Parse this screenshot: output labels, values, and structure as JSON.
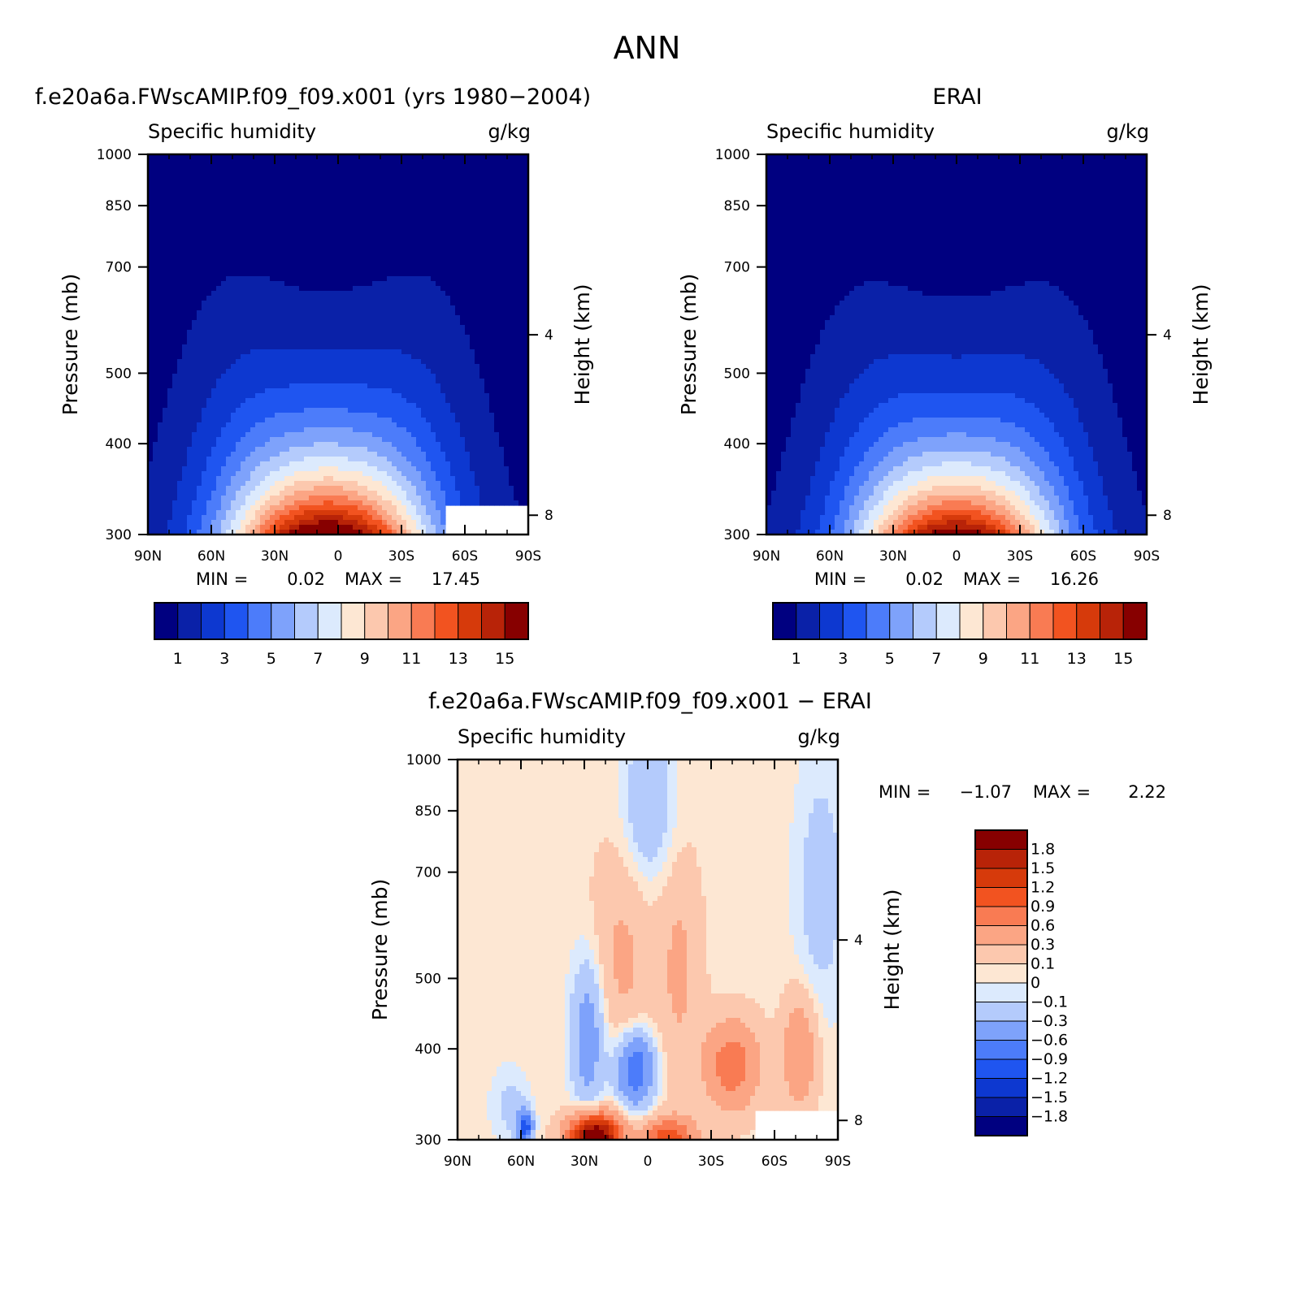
{
  "title": "ANN",
  "colors": {
    "model_obs_scale": [
      "#000080",
      "#0a21a8",
      "#0d38d0",
      "#1f55f0",
      "#4c7cfa",
      "#7ea2fb",
      "#b4cbfc",
      "#dceafd",
      "#fde7d3",
      "#fcc8ae",
      "#fba584",
      "#f97b53",
      "#f25320",
      "#d63a0b",
      "#b82308",
      "#870000"
    ],
    "diff_scale": [
      "#000080",
      "#0a21a8",
      "#0d38d0",
      "#1f55f0",
      "#4c7cfa",
      "#7ea2fb",
      "#b4cbfc",
      "#dceafd",
      "#fde7d3",
      "#fcc8ae",
      "#fba584",
      "#f97b53",
      "#f25320",
      "#d63a0b",
      "#b82308",
      "#870000"
    ]
  },
  "chart_data": [
    {
      "type": "heatmap",
      "title": "f.e20a6a.FWscAMIP.f09_f09.x001 (yrs 1980−2004)",
      "left_caption": "Specific humidity",
      "right_caption": "g/kg",
      "xlabel": "",
      "ylabel": "Pressure (mb)",
      "y2label": "Height (km)",
      "xticks": [
        "90N",
        "60N",
        "30N",
        "0",
        "30S",
        "60S",
        "90S"
      ],
      "yticks": [
        "300",
        "400",
        "500",
        "700",
        "850",
        "1000"
      ],
      "y2ticks": [
        "8",
        "4"
      ],
      "ylim": [
        1000,
        300
      ],
      "y_scale": "log",
      "min_label": "MIN =",
      "min_value": "0.02",
      "max_label": "MAX =",
      "max_value": "17.45",
      "colorbar_labels": [
        "1",
        "3",
        "5",
        "7",
        "9",
        "11",
        "13",
        "15"
      ],
      "field": {
        "kind": "humidity",
        "peak": 17.45,
        "center_lat": 5,
        "missing_from_lat": -50,
        "missing_below_p": 910
      }
    },
    {
      "type": "heatmap",
      "title": "ERAI",
      "left_caption": "Specific humidity",
      "right_caption": "g/kg",
      "xlabel": "",
      "ylabel": "Pressure (mb)",
      "y2label": "Height (km)",
      "xticks": [
        "90N",
        "60N",
        "30N",
        "0",
        "30S",
        "60S",
        "90S"
      ],
      "yticks": [
        "300",
        "400",
        "500",
        "700",
        "850",
        "1000"
      ],
      "y2ticks": [
        "8",
        "4"
      ],
      "ylim": [
        1000,
        300
      ],
      "y_scale": "log",
      "min_label": "MIN =",
      "min_value": "0.02",
      "max_label": "MAX =",
      "max_value": "16.26",
      "colorbar_labels": [
        "1",
        "3",
        "5",
        "7",
        "9",
        "11",
        "13",
        "15"
      ],
      "field": {
        "kind": "humidity",
        "peak": 16.26,
        "center_lat": 0
      }
    },
    {
      "type": "heatmap",
      "title": "f.e20a6a.FWscAMIP.f09_f09.x001 − ERAI",
      "left_caption": "Specific humidity",
      "right_caption": "g/kg",
      "xlabel": "",
      "ylabel": "Pressure (mb)",
      "y2label": "Height (km)",
      "xticks": [
        "90N",
        "60N",
        "30N",
        "0",
        "30S",
        "60S",
        "90S"
      ],
      "yticks": [
        "300",
        "400",
        "500",
        "700",
        "850",
        "1000"
      ],
      "y2ticks": [
        "8",
        "4"
      ],
      "ylim": [
        1000,
        300
      ],
      "y_scale": "log",
      "min_label": "MIN =",
      "min_value": "−1.07",
      "max_label": "MAX =",
      "max_value": "2.22",
      "colorbar_labels": [
        "1.8",
        "1.5",
        "1.2",
        "0.9",
        "0.6",
        "0.3",
        "0.1",
        "0",
        "−0.1",
        "−0.3",
        "−0.6",
        "−0.9",
        "−1.2",
        "−1.5",
        "−1.8"
      ],
      "field": {
        "kind": "difference",
        "missing_from_lat": -50,
        "missing_below_p": 910
      }
    }
  ]
}
